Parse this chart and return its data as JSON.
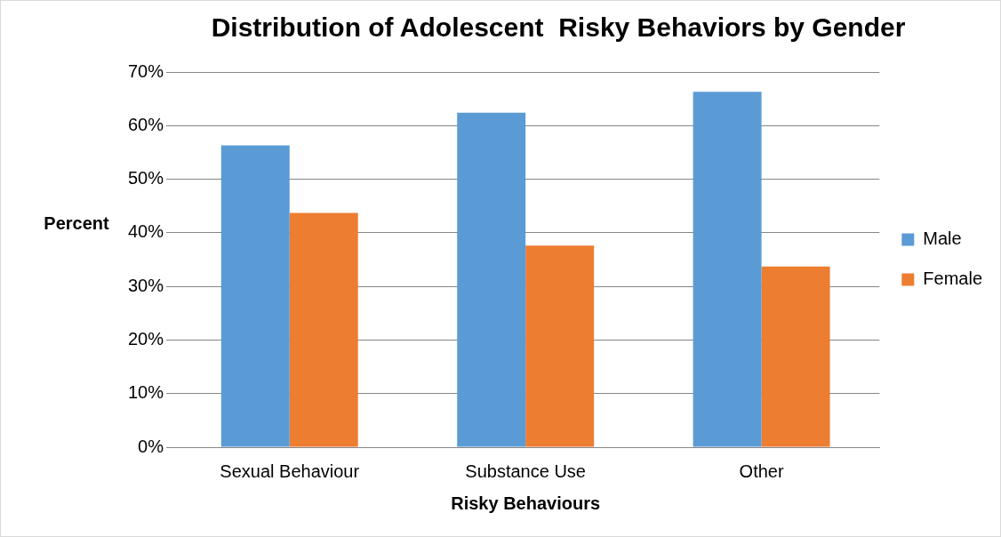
{
  "chart_data": {
    "type": "bar",
    "title": "Distribution of Adolescent  Risky Behaviors by Gender",
    "xlabel": "Risky Behaviours",
    "ylabel": "Percent",
    "categories": [
      "Sexual Behaviour",
      "Substance Use",
      "Other"
    ],
    "series": [
      {
        "name": "Male",
        "color": "#5b9bd5",
        "values": [
          56.3,
          62.4,
          66.3
        ]
      },
      {
        "name": "Female",
        "color": "#ed7d31",
        "values": [
          43.7,
          37.6,
          33.7
        ]
      }
    ],
    "ylim": [
      0,
      70
    ],
    "yticks": [
      {
        "value": 0,
        "label": "0%"
      },
      {
        "value": 10,
        "label": "10%"
      },
      {
        "value": 20,
        "label": "20%"
      },
      {
        "value": 30,
        "label": "30%"
      },
      {
        "value": 40,
        "label": "40%"
      },
      {
        "value": 50,
        "label": "50%"
      },
      {
        "value": 60,
        "label": "60%"
      },
      {
        "value": 70,
        "label": "70%"
      }
    ],
    "grid": "y",
    "legend": "right"
  }
}
